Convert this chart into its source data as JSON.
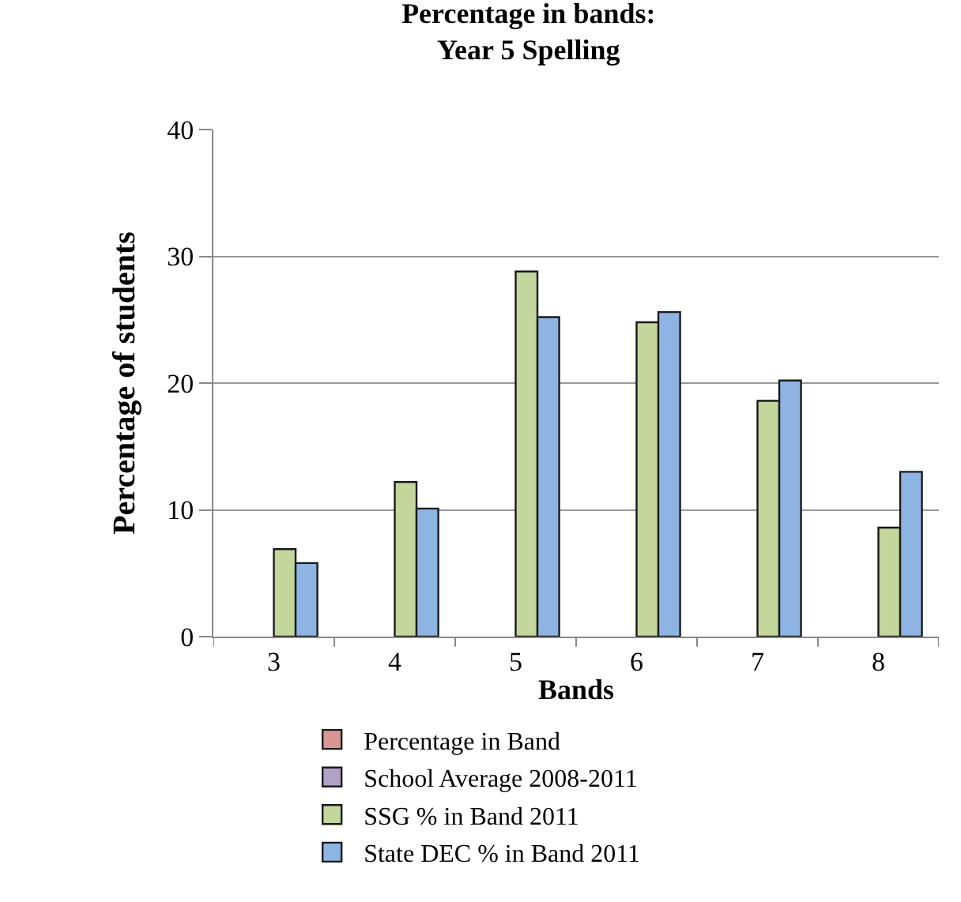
{
  "chart_data": {
    "type": "bar",
    "title": "Percentage in bands:\nYear 5 Spelling",
    "xlabel": "Bands",
    "ylabel": "Percentage of students",
    "categories": [
      "3",
      "4",
      "5",
      "6",
      "7",
      "8"
    ],
    "series": [
      {
        "name": "Percentage in Band",
        "color": "#d99694",
        "values": [
          null,
          null,
          null,
          null,
          null,
          null
        ]
      },
      {
        "name": "School Average 2008-2011",
        "color": "#b3a2c7",
        "values": [
          null,
          null,
          null,
          null,
          null,
          null
        ]
      },
      {
        "name": "SSG % in Band 2011",
        "color": "#c3d69b",
        "values": [
          6.9,
          12.2,
          28.8,
          24.8,
          18.6,
          8.6
        ]
      },
      {
        "name": "State DEC % in Band 2011",
        "color": "#8eb4e3",
        "values": [
          5.8,
          10.1,
          25.2,
          25.6,
          20.2,
          13.0
        ]
      }
    ],
    "ylim": [
      0,
      40
    ],
    "yticks": [
      0,
      10,
      20,
      30,
      40
    ],
    "grid": "y",
    "legend": "bottom"
  }
}
